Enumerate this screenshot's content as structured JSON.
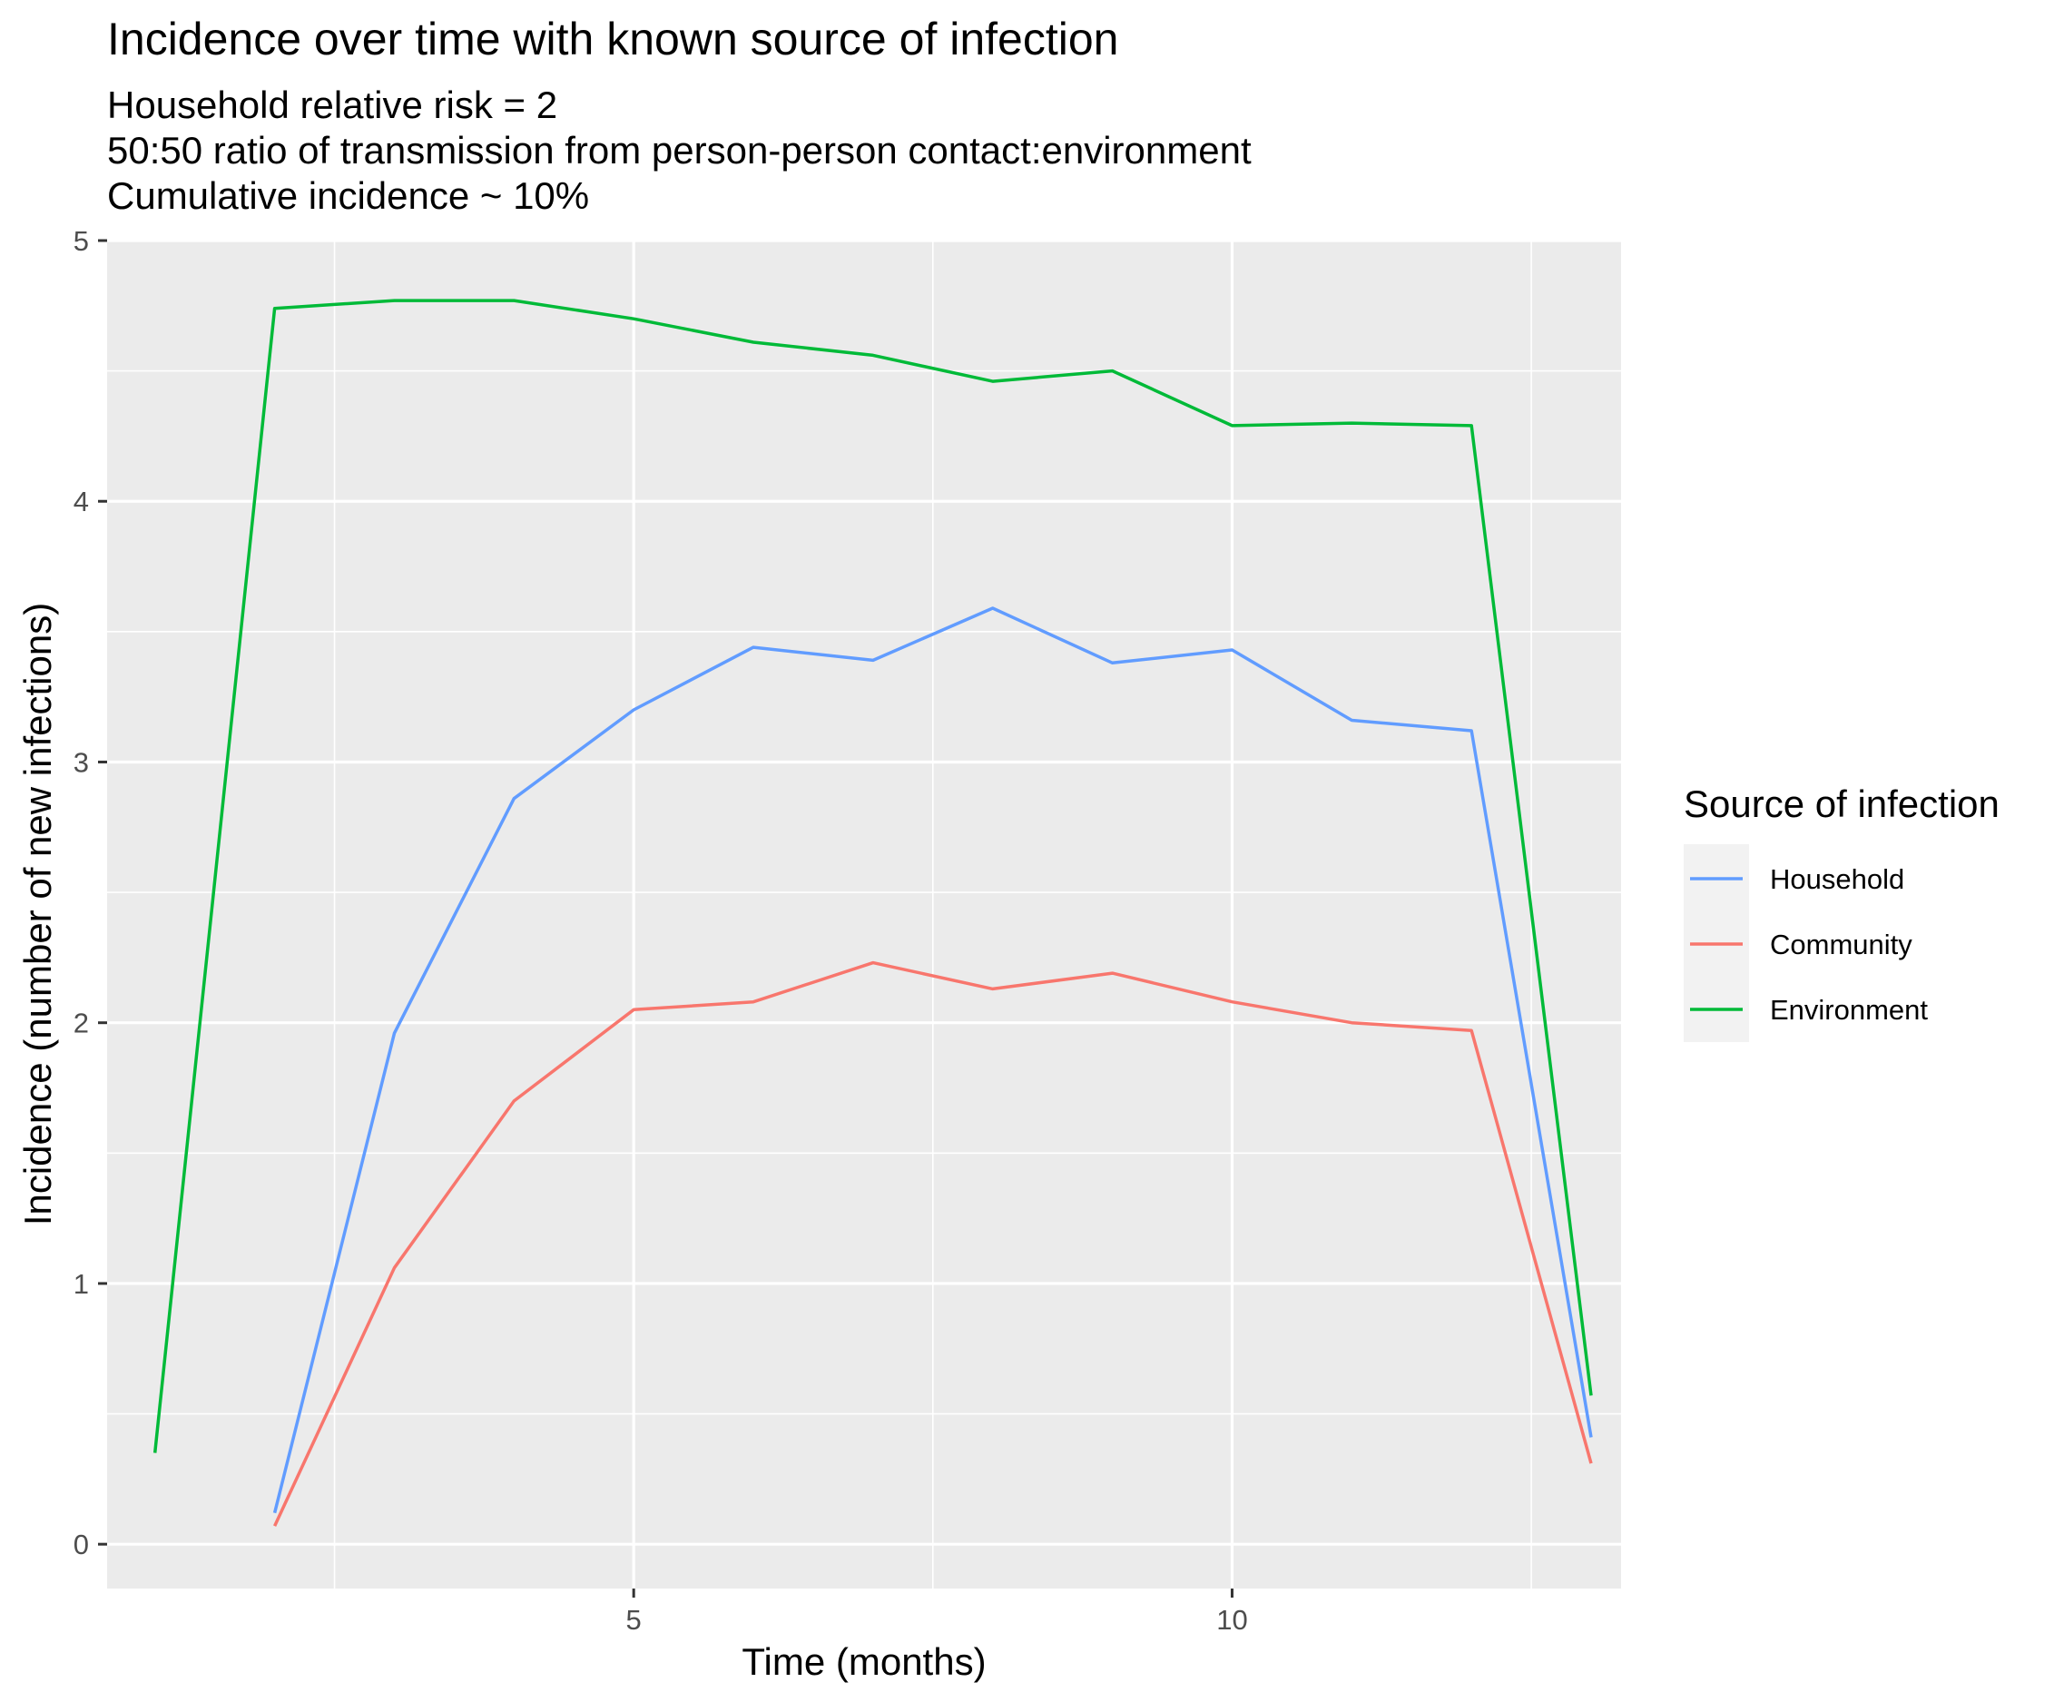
{
  "chart_data": {
    "type": "line",
    "title": "Incidence over time with known source of infection",
    "subtitle": [
      "Household relative risk = 2",
      "50:50 ratio of transmission from person-person contact:environment",
      "Cumulative incidence ~ 10%"
    ],
    "xlabel": "Time (months)",
    "ylabel": "Incidence (number of new infections)",
    "xlim": [
      0.6,
      13.25
    ],
    "ylim": [
      -0.17,
      5.0
    ],
    "xticks": [
      5,
      10
    ],
    "yticks": [
      0,
      1,
      2,
      3,
      4,
      5
    ],
    "grid": true,
    "legend": {
      "title": "Source of infection",
      "position": "right"
    },
    "series": [
      {
        "name": "Household",
        "color": "#619CFF",
        "x": [
          2,
          3,
          4,
          5,
          6,
          7,
          8,
          9,
          10,
          11,
          12,
          13
        ],
        "values": [
          0.12,
          1.96,
          2.86,
          3.2,
          3.44,
          3.39,
          3.59,
          3.38,
          3.43,
          3.16,
          3.12,
          0.41
        ]
      },
      {
        "name": "Community",
        "color": "#F8766D",
        "x": [
          2,
          3,
          4,
          5,
          6,
          7,
          8,
          9,
          10,
          11,
          12,
          13
        ],
        "values": [
          0.07,
          1.06,
          1.7,
          2.05,
          2.08,
          2.23,
          2.13,
          2.19,
          2.08,
          2.0,
          1.97,
          0.31
        ]
      },
      {
        "name": "Environment",
        "color": "#00BA38",
        "x": [
          1,
          2,
          3,
          4,
          5,
          6,
          7,
          8,
          9,
          10,
          11,
          12,
          13
        ],
        "values": [
          0.35,
          4.74,
          4.77,
          4.77,
          4.7,
          4.61,
          4.56,
          4.46,
          4.5,
          4.29,
          4.3,
          4.29,
          0.57
        ]
      }
    ]
  }
}
